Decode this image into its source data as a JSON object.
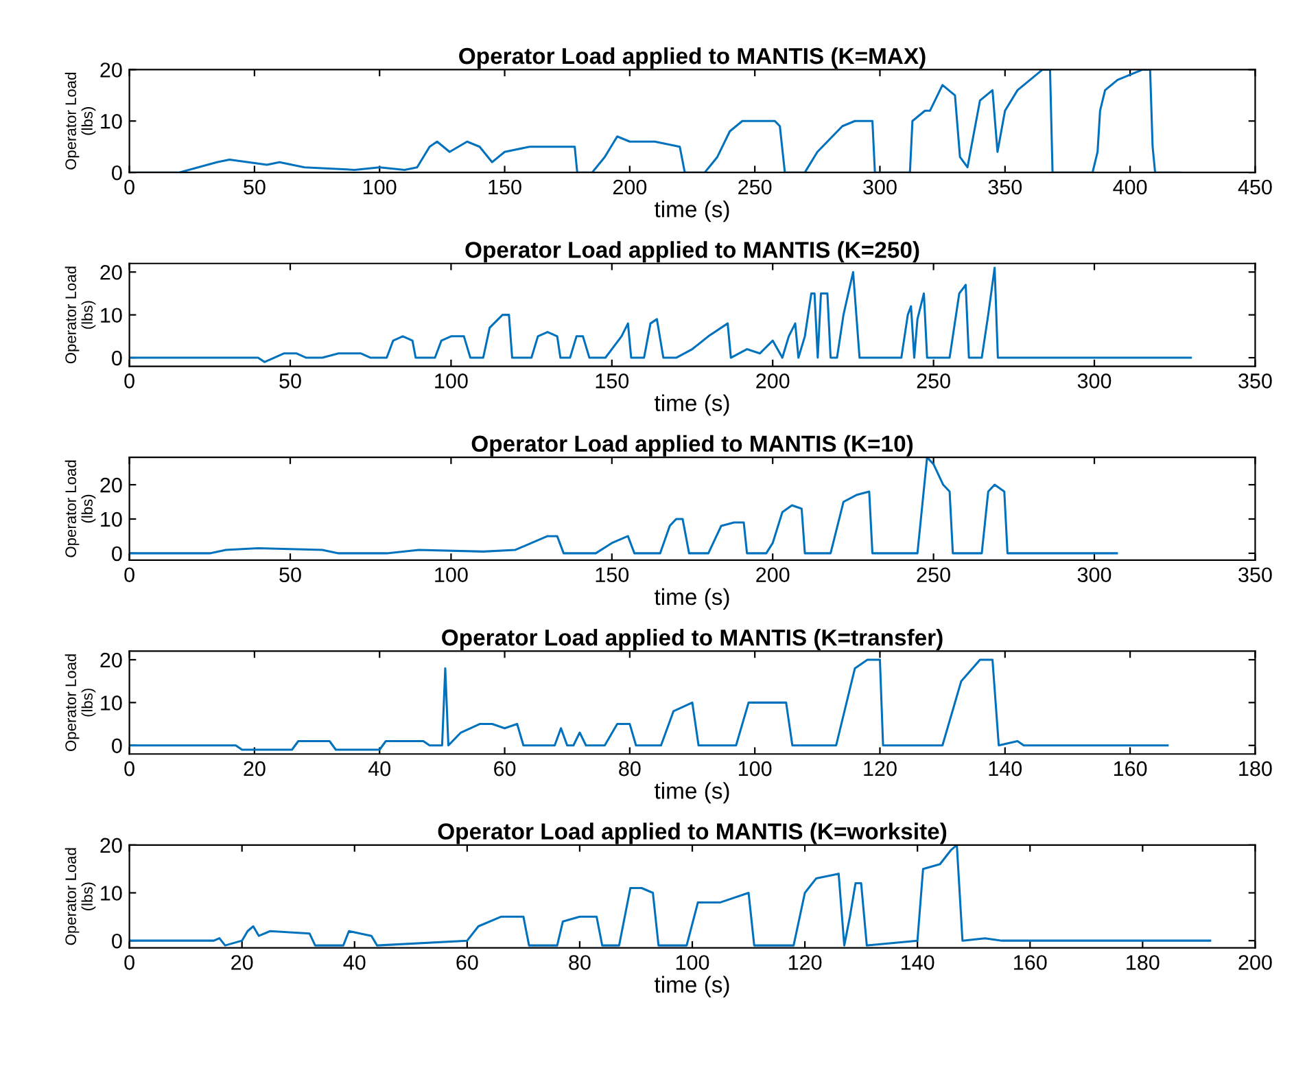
{
  "chart_data": [
    {
      "type": "line",
      "title": "Operator Load applied to MANTIS (K=MAX)",
      "xlabel": "time (s)",
      "ylabel": "Operator Load (lbs)",
      "xlim": [
        0,
        450
      ],
      "xticks": [
        0,
        50,
        100,
        150,
        200,
        250,
        300,
        350,
        400,
        450
      ],
      "ylim": [
        0,
        20
      ],
      "yticks": [
        0,
        10,
        20
      ],
      "grid": false,
      "legend": false,
      "series": [
        {
          "color": "#0072bd",
          "x": [
            0,
            20,
            35,
            40,
            55,
            60,
            70,
            90,
            100,
            110,
            115,
            120,
            123,
            128,
            135,
            140,
            145,
            150,
            160,
            178,
            179,
            185,
            190,
            195,
            200,
            210,
            220,
            222,
            230,
            235,
            240,
            245,
            250,
            258,
            260,
            262,
            270,
            275,
            285,
            290,
            297,
            298,
            300,
            312,
            313,
            318,
            320,
            325,
            330,
            332,
            335,
            340,
            345,
            347,
            350,
            355,
            360,
            365,
            367,
            368,
            369,
            375,
            385,
            387,
            388,
            390,
            395,
            400,
            405,
            408,
            409,
            410,
            420
          ],
          "values": [
            0,
            0,
            2,
            2.5,
            1.5,
            2,
            1,
            0.5,
            1,
            0.5,
            1,
            5,
            6,
            4,
            6,
            5,
            2,
            4,
            5,
            5,
            0,
            0,
            3,
            7,
            6,
            6,
            5,
            0,
            0,
            3,
            8,
            10,
            10,
            10,
            9,
            0,
            0,
            4,
            9,
            10,
            10,
            0,
            0,
            0,
            10,
            12,
            12,
            17,
            15,
            3,
            1,
            14,
            16,
            4,
            12,
            16,
            18,
            20,
            20,
            20,
            0,
            0,
            0,
            4,
            12,
            16,
            18,
            19,
            20,
            20,
            5,
            0,
            0
          ]
        }
      ]
    },
    {
      "type": "line",
      "title": "Operator Load applied to MANTIS (K=250)",
      "xlabel": "time (s)",
      "ylabel": "Operator Load (lbs)",
      "xlim": [
        0,
        350
      ],
      "xticks": [
        0,
        50,
        100,
        150,
        200,
        250,
        300,
        350
      ],
      "ylim": [
        -2,
        22
      ],
      "yticks": [
        0,
        10,
        20
      ],
      "grid": false,
      "legend": false,
      "series": [
        {
          "color": "#0072bd",
          "x": [
            0,
            40,
            42,
            48,
            52,
            55,
            60,
            65,
            72,
            75,
            80,
            82,
            85,
            88,
            89,
            95,
            97,
            100,
            104,
            106,
            110,
            112,
            116,
            118,
            119,
            125,
            127,
            130,
            133,
            134,
            137,
            139,
            141,
            143,
            148,
            153,
            155,
            156,
            160,
            162,
            164,
            166,
            170,
            175,
            180,
            186,
            187,
            192,
            196,
            200,
            203,
            205,
            207,
            208,
            210,
            212,
            213,
            214,
            215,
            217,
            218,
            220,
            222,
            225,
            227,
            230,
            240,
            242,
            243,
            244,
            245,
            247,
            248,
            255,
            258,
            260,
            261,
            265,
            267,
            269,
            270,
            275,
            330
          ],
          "values": [
            0,
            0,
            -1,
            1,
            1,
            0,
            0,
            1,
            1,
            0,
            0,
            4,
            5,
            4,
            0,
            0,
            4,
            5,
            5,
            0,
            0,
            7,
            10,
            10,
            0,
            0,
            5,
            6,
            5,
            0,
            0,
            5,
            5,
            0,
            0,
            5,
            8,
            0,
            0,
            8,
            9,
            0,
            0,
            2,
            5,
            8,
            0,
            2,
            1,
            4,
            0,
            5,
            8,
            0,
            5,
            15,
            15,
            0,
            15,
            15,
            0,
            0,
            10,
            20,
            0,
            0,
            0,
            10,
            12,
            0,
            9,
            15,
            0,
            0,
            15,
            17,
            0,
            0,
            10,
            21,
            0,
            0,
            0
          ]
        }
      ]
    },
    {
      "type": "line",
      "title": "Operator Load applied to MANTIS (K=10)",
      "xlabel": "time (s)",
      "ylabel": "Operator Load (lbs)",
      "xlim": [
        0,
        350
      ],
      "xticks": [
        0,
        50,
        100,
        150,
        200,
        250,
        300,
        350
      ],
      "ylim": [
        -2,
        28
      ],
      "yticks": [
        0,
        10,
        20
      ],
      "grid": false,
      "legend": false,
      "series": [
        {
          "color": "#0072bd",
          "x": [
            0,
            25,
            30,
            40,
            60,
            65,
            80,
            90,
            110,
            120,
            125,
            130,
            133,
            135,
            145,
            150,
            155,
            157,
            165,
            168,
            170,
            172,
            174,
            180,
            184,
            188,
            191,
            192,
            198,
            200,
            203,
            206,
            209,
            210,
            218,
            222,
            226,
            230,
            231,
            245,
            248,
            250,
            253,
            255,
            256,
            265,
            267,
            269,
            272,
            273,
            280,
            307
          ],
          "values": [
            0,
            0,
            1,
            1.5,
            1,
            0,
            0,
            1,
            0.5,
            1,
            3,
            5,
            5,
            0,
            0,
            3,
            5,
            0,
            0,
            8,
            10,
            10,
            0,
            0,
            8,
            9,
            9,
            0,
            0,
            3,
            12,
            14,
            13,
            0,
            0,
            15,
            17,
            18,
            0,
            0,
            28,
            26,
            20,
            18,
            0,
            0,
            18,
            20,
            18,
            0,
            0,
            0
          ]
        }
      ]
    },
    {
      "type": "line",
      "title": "Operator Load applied to MANTIS (K=transfer)",
      "xlabel": "time (s)",
      "ylabel": "Operator Load (lbs)",
      "xlim": [
        0,
        180
      ],
      "xticks": [
        0,
        20,
        40,
        60,
        80,
        100,
        120,
        140,
        160,
        180
      ],
      "ylim": [
        -2,
        22
      ],
      "yticks": [
        0,
        10,
        20
      ],
      "grid": false,
      "legend": false,
      "series": [
        {
          "color": "#0072bd",
          "x": [
            0,
            17,
            18,
            26,
            27,
            32,
            33,
            40,
            41,
            47,
            48,
            50,
            50.5,
            51,
            53,
            56,
            58,
            60,
            62,
            63,
            68,
            69,
            70,
            71,
            72,
            73,
            76,
            78,
            80,
            81,
            85,
            87,
            90,
            91,
            97,
            99,
            103,
            105,
            106,
            113,
            116,
            118,
            120,
            120.5,
            130,
            133,
            136,
            138,
            139,
            142,
            143,
            166
          ],
          "values": [
            0,
            0,
            -1,
            -1,
            1,
            1,
            -1,
            -1,
            1,
            1,
            0,
            0,
            18,
            0,
            3,
            5,
            5,
            4,
            5,
            0,
            0,
            4,
            0,
            0,
            3,
            0,
            0,
            5,
            5,
            0,
            0,
            8,
            10,
            0,
            0,
            10,
            10,
            10,
            0,
            0,
            18,
            20,
            20,
            0,
            0,
            15,
            20,
            20,
            0,
            1,
            0,
            0
          ]
        }
      ]
    },
    {
      "type": "line",
      "title": "Operator Load applied to MANTIS (K=worksite)",
      "xlabel": "time (s)",
      "ylabel": "Operator Load (lbs)",
      "xlim": [
        0,
        200
      ],
      "xticks": [
        0,
        20,
        40,
        60,
        80,
        100,
        120,
        140,
        160,
        180,
        200
      ],
      "ylim": [
        -1.5,
        20
      ],
      "yticks": [
        0,
        10,
        20
      ],
      "grid": false,
      "legend": false,
      "series": [
        {
          "color": "#0072bd",
          "x": [
            0,
            15,
            16,
            17,
            20,
            21,
            22,
            23,
            25,
            32,
            33,
            38,
            39,
            43,
            44,
            60,
            62,
            66,
            70,
            71,
            76,
            77,
            80,
            83,
            84,
            87,
            89,
            91,
            93,
            94,
            99,
            101,
            105,
            110,
            111,
            118,
            120,
            122,
            126,
            127,
            128,
            129,
            130,
            131,
            140,
            141,
            144,
            146,
            147,
            148,
            152,
            155,
            192
          ],
          "values": [
            0,
            0,
            0.5,
            -1,
            0,
            2,
            3,
            1,
            2,
            1.5,
            -1,
            -1,
            2,
            1,
            -1,
            0,
            3,
            5,
            5,
            -1,
            -1,
            4,
            5,
            5,
            -1,
            -1,
            11,
            11,
            10,
            -1,
            -1,
            8,
            8,
            10,
            -1,
            -1,
            10,
            13,
            14,
            -1,
            5,
            12,
            12,
            -1,
            0,
            15,
            16,
            19,
            20,
            0,
            0.5,
            0,
            0
          ]
        }
      ]
    }
  ]
}
